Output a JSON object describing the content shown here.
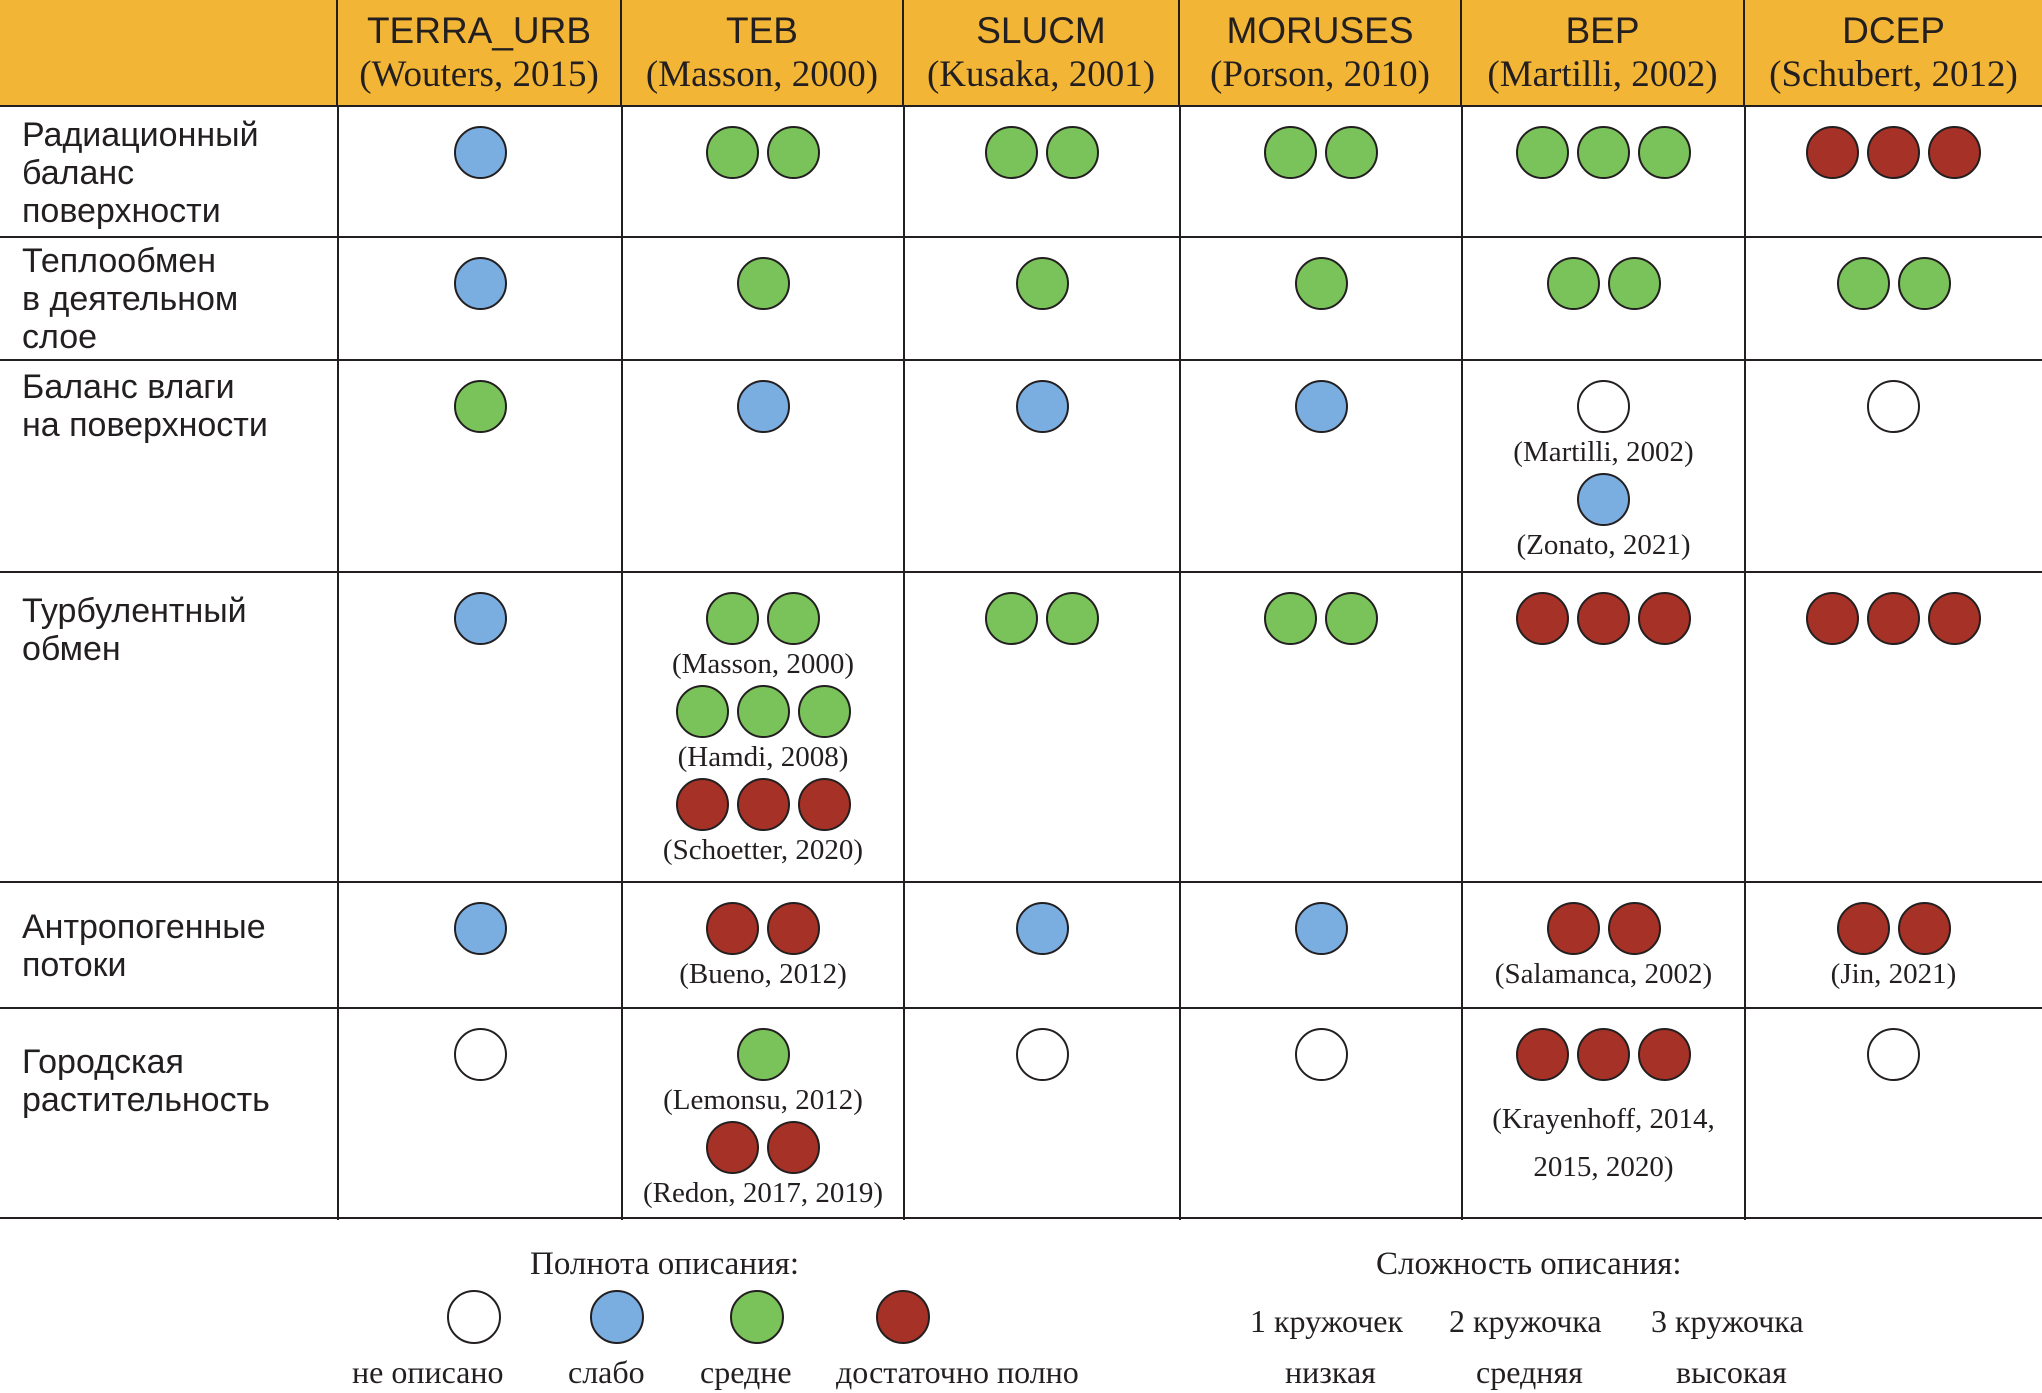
{
  "columns": [
    {
      "name": "TERRA_URB",
      "ref": "(Wouters, 2015)"
    },
    {
      "name": "TEB",
      "ref": "(Masson, 2000)"
    },
    {
      "name": "SLUCM",
      "ref": "(Kusaka, 2001)"
    },
    {
      "name": "MORUSES",
      "ref": "(Porson, 2010)"
    },
    {
      "name": "BEP",
      "ref": "(Martilli, 2002)"
    },
    {
      "name": "DCEP",
      "ref": "(Schubert, 2012)"
    }
  ],
  "rows": [
    {
      "label": "Радиационный\nбаланс\nповерхности",
      "cells": [
        [
          {
            "color": "weak",
            "count": 1
          }
        ],
        [
          {
            "color": "mid",
            "count": 2
          }
        ],
        [
          {
            "color": "mid",
            "count": 2
          }
        ],
        [
          {
            "color": "mid",
            "count": 2
          }
        ],
        [
          {
            "color": "mid",
            "count": 3
          }
        ],
        [
          {
            "color": "full",
            "count": 3
          }
        ]
      ]
    },
    {
      "label": "Теплообмен\nв деятельном\nслое",
      "cells": [
        [
          {
            "color": "weak",
            "count": 1
          }
        ],
        [
          {
            "color": "mid",
            "count": 1
          }
        ],
        [
          {
            "color": "mid",
            "count": 1
          }
        ],
        [
          {
            "color": "mid",
            "count": 1
          }
        ],
        [
          {
            "color": "mid",
            "count": 2
          }
        ],
        [
          {
            "color": "mid",
            "count": 2
          }
        ]
      ]
    },
    {
      "label": "Баланс влаги\nна поверхности",
      "cells": [
        [
          {
            "color": "mid",
            "count": 1
          }
        ],
        [
          {
            "color": "weak",
            "count": 1
          }
        ],
        [
          {
            "color": "weak",
            "count": 1
          }
        ],
        [
          {
            "color": "weak",
            "count": 1
          }
        ],
        [
          {
            "color": "none",
            "count": 1,
            "ref": "(Martilli, 2002)"
          },
          {
            "color": "weak",
            "count": 1,
            "ref": "(Zonato, 2021)"
          }
        ],
        [
          {
            "color": "none",
            "count": 1
          }
        ]
      ]
    },
    {
      "label": "Турбулентный\nобмен",
      "cells": [
        [
          {
            "color": "weak",
            "count": 1
          }
        ],
        [
          {
            "color": "mid",
            "count": 2,
            "ref": "(Masson, 2000)"
          },
          {
            "color": "mid",
            "count": 3,
            "ref": "(Hamdi, 2008)"
          },
          {
            "color": "full",
            "count": 3,
            "ref": "(Schoetter, 2020)"
          }
        ],
        [
          {
            "color": "mid",
            "count": 2
          }
        ],
        [
          {
            "color": "mid",
            "count": 2
          }
        ],
        [
          {
            "color": "full",
            "count": 3
          }
        ],
        [
          {
            "color": "full",
            "count": 3
          }
        ]
      ]
    },
    {
      "label": "Антропогенные\nпотоки",
      "cells": [
        [
          {
            "color": "weak",
            "count": 1
          }
        ],
        [
          {
            "color": "full",
            "count": 2,
            "ref": "(Bueno, 2012)"
          }
        ],
        [
          {
            "color": "weak",
            "count": 1
          }
        ],
        [
          {
            "color": "weak",
            "count": 1
          }
        ],
        [
          {
            "color": "full",
            "count": 2,
            "ref": "(Salamanca, 2002)"
          }
        ],
        [
          {
            "color": "full",
            "count": 2,
            "ref": "(Jin, 2021)"
          }
        ]
      ]
    },
    {
      "label": "Городская\nрастительность",
      "cells": [
        [
          {
            "color": "none",
            "count": 1
          }
        ],
        [
          {
            "color": "mid",
            "count": 1,
            "ref": "(Lemonsu, 2012)"
          },
          {
            "color": "full",
            "count": 2,
            "ref": "(Redon, 2017, 2019)"
          }
        ],
        [
          {
            "color": "none",
            "count": 1
          }
        ],
        [
          {
            "color": "none",
            "count": 1
          }
        ],
        [
          {
            "color": "full",
            "count": 3,
            "ref": "(Krayenhoff, 2014,\n2015, 2020)"
          }
        ],
        [
          {
            "color": "none",
            "count": 1
          }
        ]
      ]
    }
  ],
  "legend": {
    "completeness_title": "Полнота описания:",
    "completeness": [
      {
        "color": "none",
        "label": "не описано"
      },
      {
        "color": "weak",
        "label": "слабо"
      },
      {
        "color": "mid",
        "label": "средне"
      },
      {
        "color": "full",
        "label": "достаточно полно"
      }
    ],
    "complexity_title": "Сложность описания:",
    "complexity": [
      {
        "count": "1 кружочек",
        "level": "низкая"
      },
      {
        "count": "2 кружочка",
        "level": "средняя"
      },
      {
        "count": "3 кружочка",
        "level": "высокая"
      }
    ]
  },
  "colors": {
    "none": "#ffffff",
    "weak": "#7aade0",
    "mid": "#7ac35a",
    "full": "#a63126",
    "header": "#f2b535"
  }
}
